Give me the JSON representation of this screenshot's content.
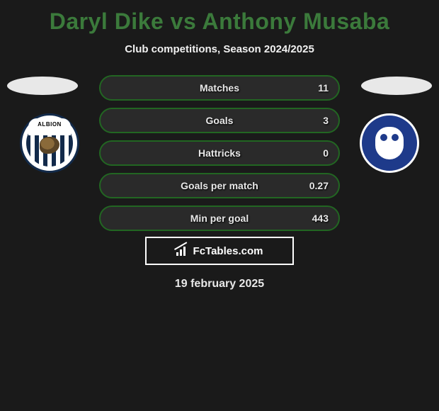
{
  "title": "Daryl Dike vs Anthony Musaba",
  "subtitle": "Club competitions, Season 2024/2025",
  "date": "19 february 2025",
  "brand": "FcTables.com",
  "colors": {
    "background": "#1a1a1a",
    "title": "#3b7a3b",
    "bar_border": "#226622",
    "bar_bg": "#2a2a2a",
    "text": "#e8e8e8",
    "brand_border": "#ffffff",
    "badge_left_primary": "#122a4a",
    "badge_right_primary": "#1e3a8a"
  },
  "stats": [
    {
      "label": "Matches",
      "value": "11"
    },
    {
      "label": "Goals",
      "value": "3"
    },
    {
      "label": "Hattricks",
      "value": "0"
    },
    {
      "label": "Goals per match",
      "value": "0.27"
    },
    {
      "label": "Min per goal",
      "value": "443"
    }
  ],
  "teams": {
    "left": {
      "name": "West Bromwich Albion"
    },
    "right": {
      "name": "Sheffield Wednesday"
    }
  }
}
